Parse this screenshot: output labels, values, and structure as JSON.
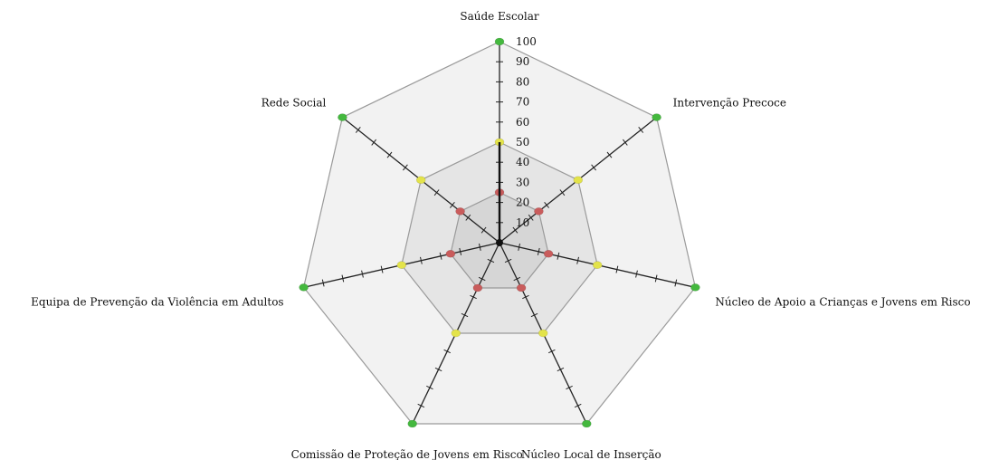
{
  "chart_data": {
    "type": "radar",
    "axes": [
      "Saúde Escolar",
      "Intervenção Precoce",
      "Núcleo de Apoio a Crianças e Jovens em Risco",
      "Núcleo Local de Inserção",
      "Comissão de Proteção de Jovens em Risco",
      "Equipa de Prevenção da Violência em Adultos",
      "Rede Social"
    ],
    "scale": {
      "min": 0,
      "max": 100,
      "step": 10
    },
    "tick_labels": [
      "10",
      "20",
      "30",
      "40",
      "50",
      "60",
      "70",
      "80",
      "90",
      "100"
    ],
    "bands": [
      {
        "value": 100,
        "fill": "#f2f2f2"
      },
      {
        "value": 50,
        "fill": "#e5e5e5"
      },
      {
        "value": 25,
        "fill": "#d6d6d6"
      }
    ],
    "series": [
      {
        "values": [
          100,
          100,
          100,
          100,
          100,
          100,
          100
        ],
        "color": "#44b83e"
      },
      {
        "values": [
          50,
          50,
          50,
          50,
          50,
          50,
          50
        ],
        "color": "#e3e34a"
      },
      {
        "values": [
          25,
          25,
          25,
          25,
          25,
          25,
          25
        ],
        "color": "#c95c5c"
      }
    ],
    "colors": {
      "spoke": "#222222",
      "ring": "#9a9a9a"
    }
  }
}
